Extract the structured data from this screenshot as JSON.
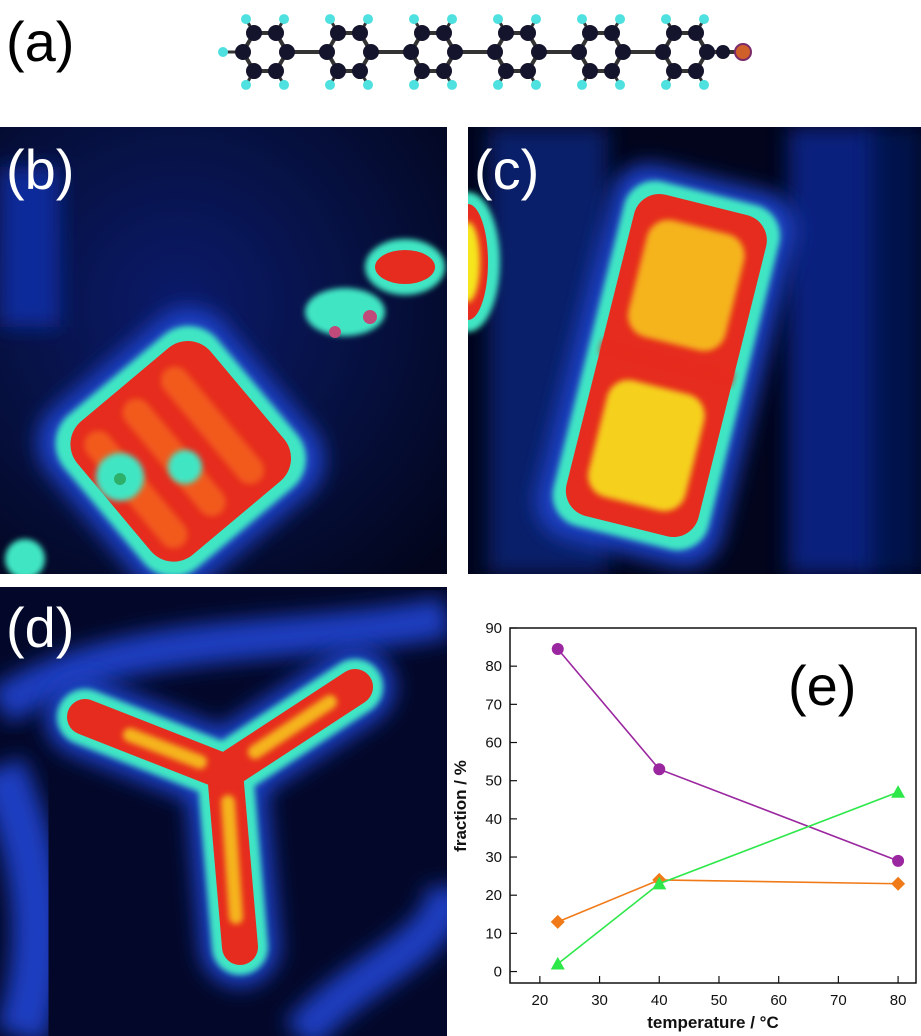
{
  "panels": {
    "a": "(a)",
    "b": "(b)",
    "c": "(c)",
    "d": "(d)",
    "e": "(e)"
  },
  "colors": {
    "stm_background": "#02051c",
    "stm_blue": "#1d3fc4",
    "stm_cyan": "#3fe6c4",
    "stm_red": "#e62c1e",
    "stm_yellow": "#f5e51c",
    "atom_carbon": "#14142c",
    "atom_hydrogen": "#4fe0e0",
    "atom_terminal": "#d0602a"
  },
  "chart_data": {
    "type": "line",
    "x_ticks": [
      "20",
      "30",
      "40",
      "50",
      "60",
      "70",
      "80"
    ],
    "y_ticks": [
      "0",
      "10",
      "20",
      "30",
      "40",
      "50",
      "60",
      "70",
      "80",
      "90"
    ],
    "xlabel": "temperature / °C",
    "ylabel": "fraction / %",
    "xlim": [
      15,
      83
    ],
    "ylim": [
      -3,
      90
    ],
    "panel_label": "(e)",
    "grid": false,
    "series": [
      {
        "color": "#9b27a0",
        "marker": "circle",
        "x": [
          23,
          40,
          80
        ],
        "y": [
          84.5,
          53,
          29
        ]
      },
      {
        "color": "#f07a18",
        "marker": "diamond",
        "x": [
          23,
          40,
          80
        ],
        "y": [
          13,
          24,
          23
        ]
      },
      {
        "color": "#2ee84a",
        "marker": "triangle",
        "x": [
          23,
          40,
          80
        ],
        "y": [
          2,
          23,
          47
        ]
      }
    ]
  }
}
